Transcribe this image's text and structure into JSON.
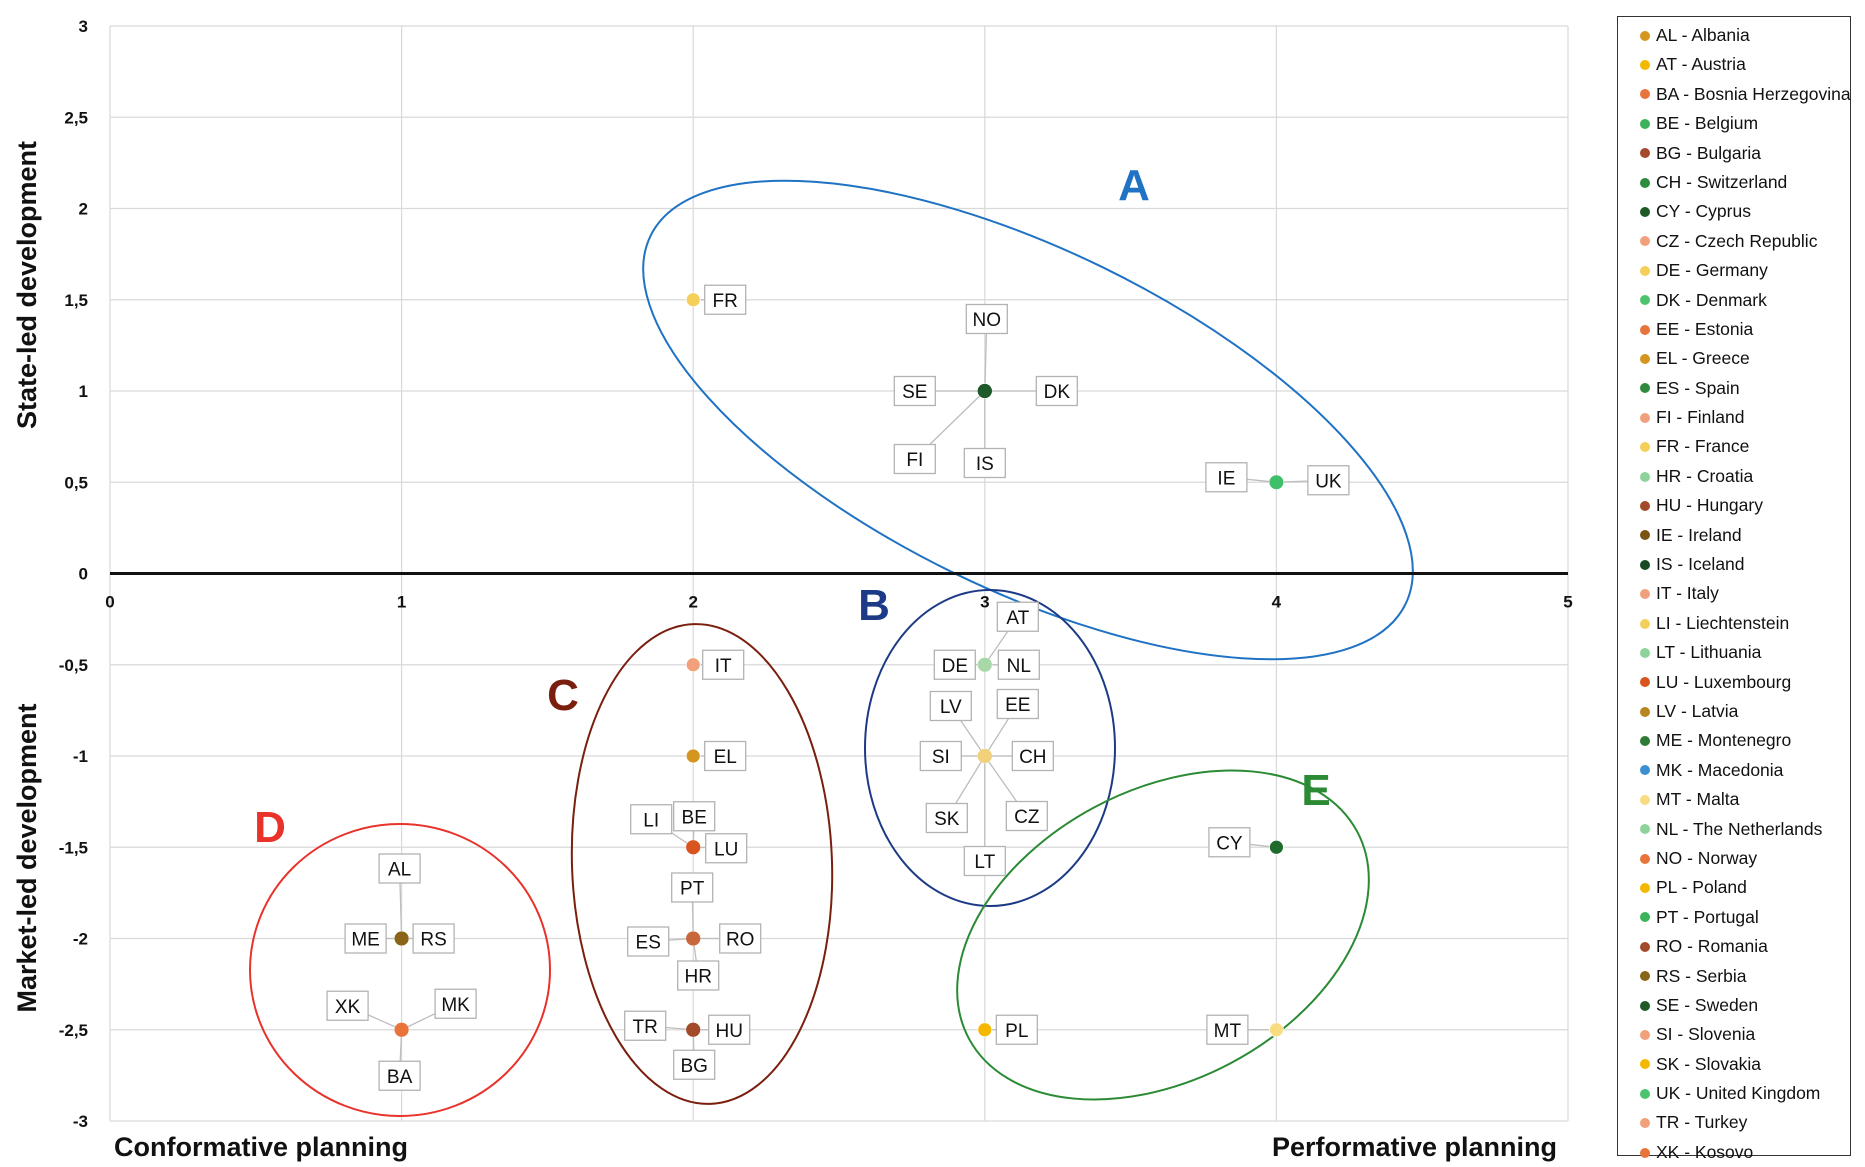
{
  "chart_data": {
    "type": "scatter",
    "xlabel_left": "Conformative planning",
    "xlabel_right": "Performative planning",
    "ylabel_top": "State-led development",
    "ylabel_bottom": "Market-led development",
    "xlim": [
      0,
      5
    ],
    "ylim": [
      -3,
      3
    ],
    "x_ticks": [
      "0",
      "1",
      "2",
      "3",
      "4",
      "5"
    ],
    "y_ticks": [
      "3",
      "2,5",
      "2",
      "1,5",
      "1",
      "0,5",
      "0",
      "-0,5",
      "-1",
      "-1,5",
      "-2",
      "-2,5",
      "-3"
    ],
    "grid": true,
    "legend_position": "right",
    "groups": [
      {
        "label": "A",
        "color": "#1f72c4"
      },
      {
        "label": "B",
        "color": "#1c3a86"
      },
      {
        "label": "C",
        "color": "#7a1f0e"
      },
      {
        "label": "D",
        "color": "#e8322a"
      },
      {
        "label": "E",
        "color": "#2b8a34"
      }
    ],
    "points": [
      {
        "label": "FR",
        "x": 2,
        "y": 1.5,
        "color": "#f5cf5a"
      },
      {
        "label": "NO",
        "x": 3,
        "y": 1,
        "color": "#1f5a2a"
      },
      {
        "label": "SE",
        "x": 3,
        "y": 1,
        "color": "#1f5a2a"
      },
      {
        "label": "DK",
        "x": 3,
        "y": 1,
        "color": "#1f5a2a"
      },
      {
        "label": "FI",
        "x": 3,
        "y": 1,
        "color": "#1f5a2a"
      },
      {
        "label": "IS",
        "x": 3,
        "y": 1,
        "color": "#1f5a2a"
      },
      {
        "label": "IE",
        "x": 4,
        "y": 0.5,
        "color": "#3fbf6a"
      },
      {
        "label": "UK",
        "x": 4,
        "y": 0.5,
        "color": "#3fbf6a"
      },
      {
        "label": "AT",
        "x": 3,
        "y": -0.5,
        "color": "#a8d8a8"
      },
      {
        "label": "DE",
        "x": 3,
        "y": -0.5,
        "color": "#a8d8a8"
      },
      {
        "label": "NL",
        "x": 3,
        "y": -0.5,
        "color": "#a8d8a8"
      },
      {
        "label": "LV",
        "x": 3,
        "y": -1,
        "color": "#f1d27a"
      },
      {
        "label": "EE",
        "x": 3,
        "y": -1,
        "color": "#f1d27a"
      },
      {
        "label": "SI",
        "x": 3,
        "y": -1,
        "color": "#f1d27a"
      },
      {
        "label": "CH",
        "x": 3,
        "y": -1,
        "color": "#f1d27a"
      },
      {
        "label": "SK",
        "x": 3,
        "y": -1,
        "color": "#f1d27a"
      },
      {
        "label": "CZ",
        "x": 3,
        "y": -1,
        "color": "#f1d27a"
      },
      {
        "label": "LT",
        "x": 3,
        "y": -1,
        "color": "#f1d27a"
      },
      {
        "label": "IT",
        "x": 2,
        "y": -0.5,
        "color": "#f2a07b"
      },
      {
        "label": "EL",
        "x": 2,
        "y": -1,
        "color": "#d4961e"
      },
      {
        "label": "LI",
        "x": 2,
        "y": -1.5,
        "color": "#d9541e"
      },
      {
        "label": "BE",
        "x": 2,
        "y": -1.5,
        "color": "#d9541e"
      },
      {
        "label": "LU",
        "x": 2,
        "y": -1.5,
        "color": "#d9541e"
      },
      {
        "label": "PT",
        "x": 2,
        "y": -2,
        "color": "#c8663c"
      },
      {
        "label": "ES",
        "x": 2,
        "y": -2,
        "color": "#c8663c"
      },
      {
        "label": "RO",
        "x": 2,
        "y": -2,
        "color": "#c8663c"
      },
      {
        "label": "HR",
        "x": 2,
        "y": -2,
        "color": "#c8663c"
      },
      {
        "label": "TR",
        "x": 2,
        "y": -2.5,
        "color": "#a24a2a"
      },
      {
        "label": "HU",
        "x": 2,
        "y": -2.5,
        "color": "#a24a2a"
      },
      {
        "label": "BG",
        "x": 2,
        "y": -2.5,
        "color": "#a24a2a"
      },
      {
        "label": "AL",
        "x": 1,
        "y": -2,
        "color": "#8a6418"
      },
      {
        "label": "ME",
        "x": 1,
        "y": -2,
        "color": "#8a6418"
      },
      {
        "label": "RS",
        "x": 1,
        "y": -2,
        "color": "#8a6418"
      },
      {
        "label": "XK",
        "x": 1,
        "y": -2.5,
        "color": "#e8743c"
      },
      {
        "label": "MK",
        "x": 1,
        "y": -2.5,
        "color": "#e8743c"
      },
      {
        "label": "BA",
        "x": 1,
        "y": -2.5,
        "color": "#e8743c"
      },
      {
        "label": "CY",
        "x": 4,
        "y": -1.5,
        "color": "#1e6b2c"
      },
      {
        "label": "PL",
        "x": 3,
        "y": -2.5,
        "color": "#f5b800"
      },
      {
        "label": "MT",
        "x": 4,
        "y": -2.5,
        "color": "#f8dc80"
      }
    ],
    "legend": [
      {
        "label": "AL - Albania",
        "color": "#d4961e"
      },
      {
        "label": "AT - Austria",
        "color": "#f5b800"
      },
      {
        "label": "BA - Bosnia Herzegovina",
        "color": "#e8743c"
      },
      {
        "label": "BE - Belgium",
        "color": "#3bb35a"
      },
      {
        "label": "BG - Bulgaria",
        "color": "#a24a2a"
      },
      {
        "label": "CH - Switzerland",
        "color": "#2e8b3e"
      },
      {
        "label": "CY - Cyprus",
        "color": "#1e5a28"
      },
      {
        "label": "CZ - Czech Republic",
        "color": "#f2a07b"
      },
      {
        "label": "DE - Germany",
        "color": "#f5cf5a"
      },
      {
        "label": "DK - Denmark",
        "color": "#4cc46e"
      },
      {
        "label": "EE - Estonia",
        "color": "#e8743c"
      },
      {
        "label": "EL - Greece",
        "color": "#d4961e"
      },
      {
        "label": "ES - Spain",
        "color": "#2e8b3e"
      },
      {
        "label": "FI - Finland",
        "color": "#f2a07b"
      },
      {
        "label": "FR - France",
        "color": "#f5cf5a"
      },
      {
        "label": "HR - Croatia",
        "color": "#8ed49a"
      },
      {
        "label": "HU - Hungary",
        "color": "#a24a2a"
      },
      {
        "label": "IE - Ireland",
        "color": "#7a5212"
      },
      {
        "label": "IS - Iceland",
        "color": "#1a4a22"
      },
      {
        "label": "IT - Italy",
        "color": "#f2a07b"
      },
      {
        "label": "LI - Liechtenstein",
        "color": "#f5cf5a"
      },
      {
        "label": "LT - Lithuania",
        "color": "#8ed49a"
      },
      {
        "label": "LU - Luxembourg",
        "color": "#d9541e"
      },
      {
        "label": "LV - Latvia",
        "color": "#b8861e"
      },
      {
        "label": "ME - Montenegro",
        "color": "#2e7a36"
      },
      {
        "label": "MK - Macedonia",
        "color": "#3a8fd0"
      },
      {
        "label": "MT - Malta",
        "color": "#f8dc80"
      },
      {
        "label": "NL - The Netherlands",
        "color": "#8ed49a"
      },
      {
        "label": "NO - Norway",
        "color": "#e8743c"
      },
      {
        "label": "PL - Poland",
        "color": "#f5b800"
      },
      {
        "label": "PT - Portugal",
        "color": "#3bb35a"
      },
      {
        "label": "RO - Romania",
        "color": "#a24a2a"
      },
      {
        "label": "RS - Serbia",
        "color": "#8a6418"
      },
      {
        "label": "SE - Sweden",
        "color": "#1e5a28"
      },
      {
        "label": "SI - Slovenia",
        "color": "#f2a07b"
      },
      {
        "label": "SK - Slovakia",
        "color": "#f5b800"
      },
      {
        "label": "UK - United Kingdom",
        "color": "#4cc46e"
      },
      {
        "label": "TR - Turkey",
        "color": "#f2a07b"
      },
      {
        "label": "XK - Kosovo",
        "color": "#e8743c"
      }
    ]
  }
}
